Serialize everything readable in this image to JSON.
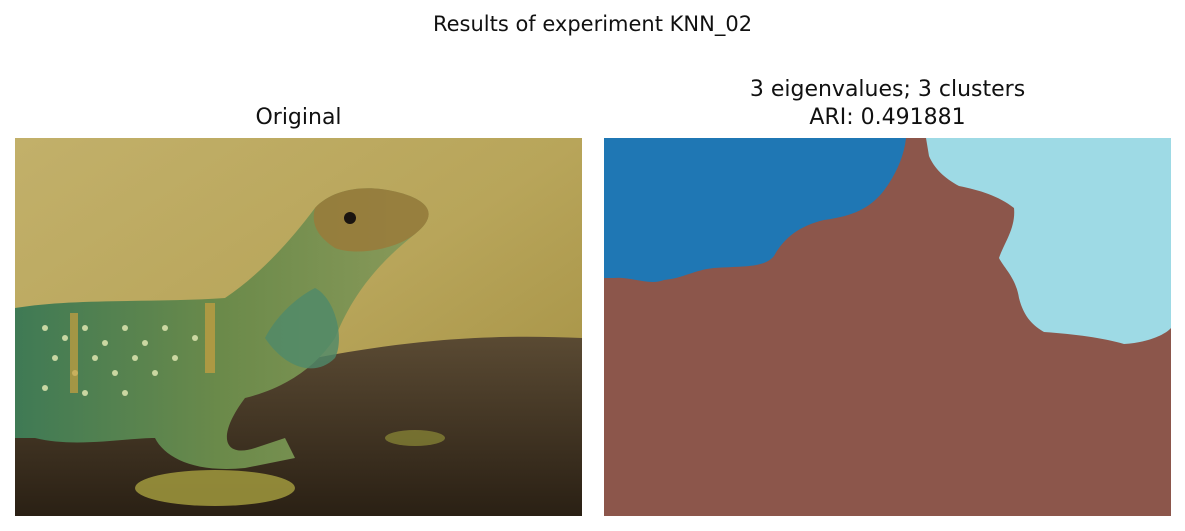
{
  "figure": {
    "title": "Results of experiment KNN_02"
  },
  "panels": {
    "left": {
      "title": "Original",
      "image": "photo of a collared lizard on a lichen-covered rock"
    },
    "right": {
      "title_line1": "3 eigenvalues; 3 clusters",
      "title_line2": "ARI: 0.491881",
      "image": "segmentation map with three clusters"
    }
  },
  "colors": {
    "cluster_blue": "#1f77b4",
    "cluster_brown": "#8c564b",
    "cluster_lightblue": "#9edae5",
    "background_yellow": "#c7b56a",
    "lizard_green": "#5a8a52",
    "rock_dark": "#3a2e1f"
  }
}
